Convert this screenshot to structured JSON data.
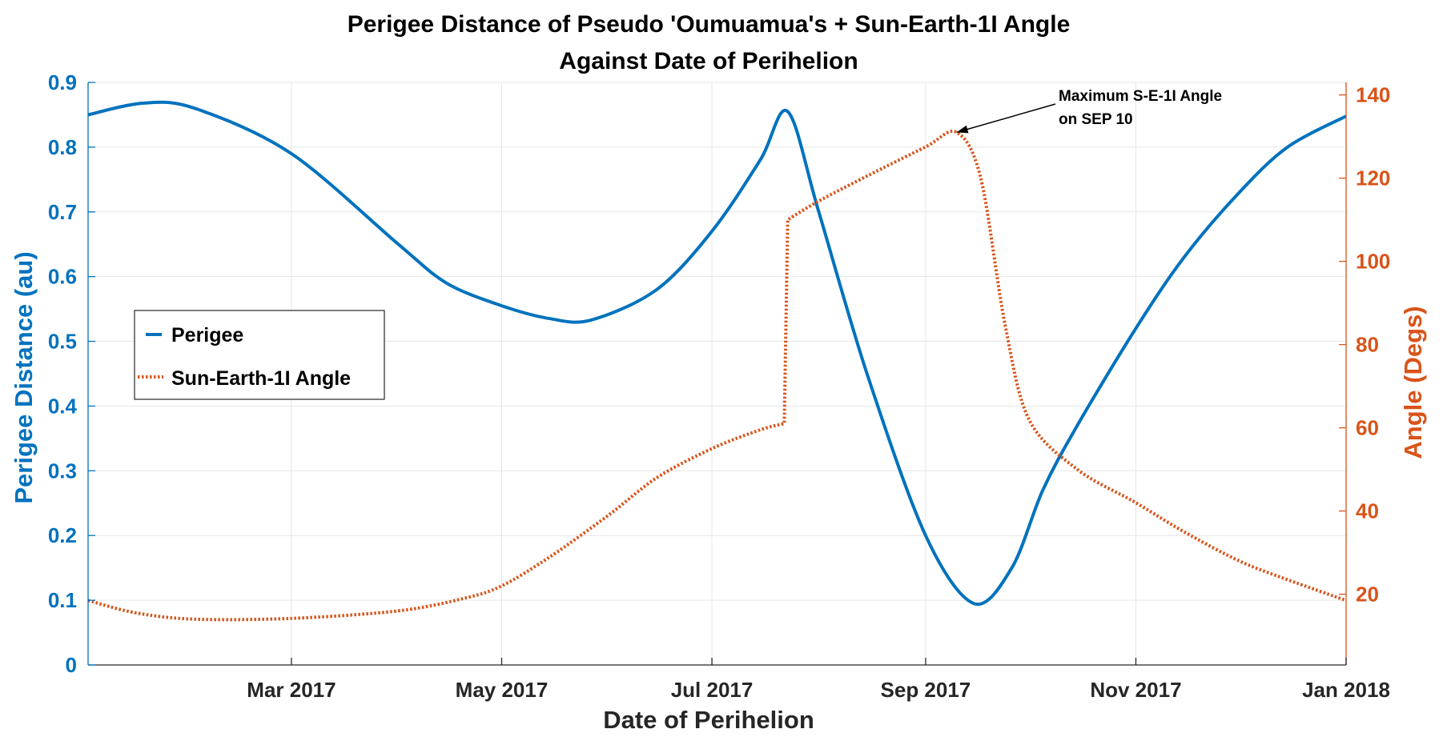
{
  "chart_data": {
    "type": "line",
    "title_lines": [
      "Perigee Distance of Pseudo 'Oumuamua's + Sun-Earth-1I Angle",
      "Against Date of Perihelion"
    ],
    "xlabel": "Date of Perihelion",
    "ylabel_left": "Perigee Distance (au)",
    "ylabel_right": "Angle (Degs)",
    "x_range": [
      "2017-01-01",
      "2018-01-01"
    ],
    "x_ticks": [
      {
        "date": "2017-03-01",
        "label": "Mar 2017"
      },
      {
        "date": "2017-05-01",
        "label": "May 2017"
      },
      {
        "date": "2017-07-01",
        "label": "Jul 2017"
      },
      {
        "date": "2017-09-01",
        "label": "Sep 2017"
      },
      {
        "date": "2017-11-01",
        "label": "Nov 2017"
      },
      {
        "date": "2018-01-01",
        "label": "Jan 2018"
      }
    ],
    "ylim_left": [
      0,
      0.9
    ],
    "yticks_left": [
      0,
      0.1,
      0.2,
      0.3,
      0.4,
      0.5,
      0.6,
      0.7,
      0.8,
      0.9
    ],
    "ylim_right": [
      3,
      143
    ],
    "yticks_right": [
      20,
      40,
      60,
      80,
      100,
      120,
      140
    ],
    "grid": true,
    "legend_position": "middle-left",
    "colors": {
      "perigee": "#0072BD",
      "angle": "#D95319"
    },
    "series": [
      {
        "name": "Perigee",
        "axis": "left",
        "style": "solid",
        "x": [
          "2017-01-01",
          "2017-01-17",
          "2017-02-01",
          "2017-03-01",
          "2017-04-01",
          "2017-04-15",
          "2017-05-01",
          "2017-05-15",
          "2017-05-27",
          "2017-06-15",
          "2017-07-01",
          "2017-07-15",
          "2017-07-23",
          "2017-08-01",
          "2017-08-15",
          "2017-09-01",
          "2017-09-15",
          "2017-09-26",
          "2017-10-05",
          "2017-10-15",
          "2017-11-01",
          "2017-11-15",
          "2017-12-01",
          "2017-12-15",
          "2018-01-01"
        ],
        "values": [
          0.85,
          0.868,
          0.86,
          0.79,
          0.65,
          0.59,
          0.555,
          0.535,
          0.533,
          0.58,
          0.67,
          0.78,
          0.855,
          0.7,
          0.45,
          0.2,
          0.095,
          0.15,
          0.27,
          0.37,
          0.52,
          0.63,
          0.73,
          0.8,
          0.848
        ]
      },
      {
        "name": "Sun-Earth-1I Angle",
        "axis": "right",
        "style": "dotted",
        "x": [
          "2017-01-01",
          "2017-01-15",
          "2017-02-01",
          "2017-03-01",
          "2017-04-01",
          "2017-04-20",
          "2017-05-01",
          "2017-05-15",
          "2017-06-01",
          "2017-06-15",
          "2017-07-01",
          "2017-07-15",
          "2017-07-22",
          "2017-07-23",
          "2017-08-01",
          "2017-08-15",
          "2017-09-01",
          "2017-09-10",
          "2017-09-17",
          "2017-09-24",
          "2017-10-01",
          "2017-10-15",
          "2017-11-01",
          "2017-11-15",
          "2017-12-01",
          "2017-12-15",
          "2018-01-01"
        ],
        "values": [
          18.5,
          15.5,
          14,
          14.2,
          16,
          19,
          22,
          29,
          39,
          48,
          55,
          59.5,
          61,
          110,
          114.5,
          120.5,
          127.5,
          131,
          120,
          85,
          62,
          50,
          42,
          35,
          28,
          23.5,
          18.5
        ]
      }
    ],
    "annotation": {
      "lines": [
        "Maximum S-E-1I Angle",
        "on SEP 10"
      ],
      "target_x": "2017-09-10",
      "target_y": 131
    }
  }
}
